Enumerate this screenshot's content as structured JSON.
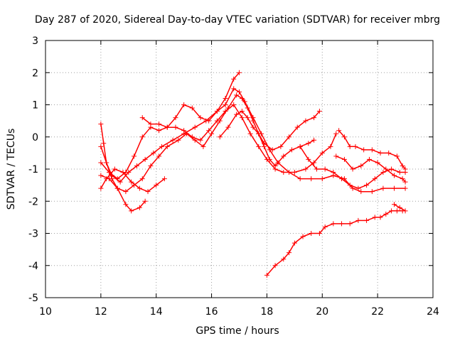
{
  "chart_data": {
    "type": "scatter",
    "title": "Day 287 of 2020, Sidereal Day-to-day VTEC variation (SDTVAR) for receiver mbrg",
    "xlabel": "GPS time / hours",
    "ylabel": "SDTVAR / TECUs",
    "xlim": [
      10,
      24
    ],
    "ylim": [
      -5,
      3
    ],
    "xticks": [
      "10",
      "12",
      "14",
      "16",
      "18",
      "20",
      "22",
      "24"
    ],
    "yticks": [
      "-5",
      "-4",
      "-3",
      "-2",
      "-1",
      "0",
      "1",
      "2",
      "3"
    ],
    "grid": true,
    "marker": "+",
    "color": "#ff0000",
    "series": [
      {
        "name": "track-1",
        "points": [
          [
            12.0,
            0.4
          ],
          [
            12.1,
            -0.2
          ],
          [
            12.2,
            -0.8
          ],
          [
            12.4,
            -1.3
          ],
          [
            12.6,
            -1.6
          ],
          [
            12.9,
            -1.7
          ],
          [
            13.2,
            -1.5
          ],
          [
            13.5,
            -1.3
          ],
          [
            13.8,
            -0.9
          ],
          [
            14.1,
            -0.6
          ],
          [
            14.4,
            -0.3
          ],
          [
            14.8,
            -0.1
          ],
          [
            15.1,
            0.1
          ],
          [
            15.4,
            -0.1
          ],
          [
            15.7,
            -0.3
          ],
          [
            16.0,
            0.1
          ],
          [
            16.3,
            0.5
          ],
          [
            16.6,
            0.9
          ],
          [
            16.9,
            1.3
          ],
          [
            17.1,
            1.2
          ],
          [
            17.3,
            0.9
          ],
          [
            17.5,
            0.5
          ],
          [
            17.7,
            0.1
          ],
          [
            17.9,
            -0.3
          ],
          [
            18.1,
            -0.7
          ],
          [
            18.3,
            -0.9
          ],
          [
            18.6,
            -0.6
          ],
          [
            18.9,
            -0.4
          ],
          [
            19.2,
            -0.3
          ],
          [
            19.5,
            -0.2
          ],
          [
            19.7,
            -0.1
          ]
        ]
      },
      {
        "name": "track-2",
        "points": [
          [
            12.0,
            -0.3
          ],
          [
            12.2,
            -0.8
          ],
          [
            12.4,
            -1.2
          ],
          [
            12.7,
            -1.4
          ],
          [
            13.0,
            -1.1
          ],
          [
            13.3,
            -0.9
          ],
          [
            13.6,
            -0.7
          ],
          [
            13.9,
            -0.5
          ],
          [
            14.2,
            -0.3
          ],
          [
            14.6,
            -0.1
          ],
          [
            15.0,
            0.1
          ],
          [
            15.4,
            0.3
          ],
          [
            15.8,
            0.5
          ],
          [
            16.2,
            0.8
          ],
          [
            16.5,
            1.0
          ],
          [
            16.8,
            1.5
          ],
          [
            17.0,
            1.4
          ],
          [
            17.2,
            1.1
          ],
          [
            17.5,
            0.6
          ],
          [
            17.8,
            0.1
          ],
          [
            18.1,
            -0.4
          ],
          [
            18.4,
            -0.8
          ],
          [
            18.8,
            -1.1
          ],
          [
            19.2,
            -1.3
          ],
          [
            19.6,
            -1.3
          ],
          [
            20.0,
            -1.3
          ],
          [
            20.4,
            -1.2
          ],
          [
            20.8,
            -1.3
          ],
          [
            21.1,
            -1.6
          ],
          [
            21.4,
            -1.7
          ],
          [
            21.8,
            -1.7
          ],
          [
            22.2,
            -1.6
          ],
          [
            22.6,
            -1.6
          ],
          [
            23.0,
            -1.6
          ]
        ]
      },
      {
        "name": "track-3",
        "points": [
          [
            12.0,
            -1.6
          ],
          [
            12.2,
            -1.3
          ],
          [
            12.5,
            -1.0
          ],
          [
            12.8,
            -1.1
          ],
          [
            13.1,
            -1.4
          ],
          [
            13.4,
            -1.6
          ],
          [
            13.7,
            -1.7
          ],
          [
            14.0,
            -1.5
          ],
          [
            14.3,
            -1.3
          ]
        ]
      },
      {
        "name": "track-4",
        "points": [
          [
            12.0,
            -1.2
          ],
          [
            12.3,
            -1.3
          ],
          [
            12.6,
            -1.6
          ],
          [
            12.9,
            -2.1
          ],
          [
            13.1,
            -2.3
          ],
          [
            13.4,
            -2.2
          ],
          [
            13.6,
            -2.0
          ]
        ]
      },
      {
        "name": "track-5",
        "points": [
          [
            13.5,
            0.6
          ],
          [
            13.8,
            0.4
          ],
          [
            14.1,
            0.4
          ],
          [
            14.4,
            0.3
          ],
          [
            14.7,
            0.3
          ],
          [
            15.0,
            0.2
          ],
          [
            15.3,
            0.0
          ],
          [
            15.6,
            -0.1
          ],
          [
            15.9,
            0.2
          ],
          [
            16.2,
            0.5
          ],
          [
            16.5,
            0.8
          ],
          [
            16.8,
            1.0
          ],
          [
            17.1,
            0.6
          ],
          [
            17.4,
            0.1
          ],
          [
            17.7,
            -0.3
          ],
          [
            18.0,
            -0.7
          ],
          [
            18.3,
            -1.0
          ],
          [
            18.6,
            -1.1
          ],
          [
            19.0,
            -1.1
          ],
          [
            19.4,
            -1.0
          ],
          [
            19.7,
            -0.8
          ],
          [
            20.0,
            -0.5
          ],
          [
            20.3,
            -0.3
          ],
          [
            20.5,
            0.1
          ]
        ]
      },
      {
        "name": "track-6",
        "points": [
          [
            12.0,
            -0.8
          ],
          [
            12.3,
            -1.1
          ],
          [
            12.6,
            -1.3
          ],
          [
            12.9,
            -1.1
          ],
          [
            13.2,
            -0.6
          ],
          [
            13.5,
            0.0
          ],
          [
            13.8,
            0.3
          ],
          [
            14.1,
            0.2
          ],
          [
            14.4,
            0.3
          ],
          [
            14.7,
            0.6
          ],
          [
            15.0,
            1.0
          ],
          [
            15.3,
            0.9
          ],
          [
            15.6,
            0.6
          ],
          [
            15.9,
            0.5
          ],
          [
            16.2,
            0.8
          ],
          [
            16.5,
            1.2
          ],
          [
            16.8,
            1.8
          ],
          [
            17.0,
            2.0
          ]
        ]
      },
      {
        "name": "track-7",
        "points": [
          [
            16.3,
            0.0
          ],
          [
            16.6,
            0.3
          ],
          [
            16.9,
            0.7
          ],
          [
            17.1,
            0.8
          ],
          [
            17.3,
            0.6
          ],
          [
            17.5,
            0.3
          ],
          [
            17.7,
            0.1
          ],
          [
            17.9,
            -0.2
          ],
          [
            18.2,
            -0.4
          ],
          [
            18.5,
            -0.3
          ],
          [
            18.8,
            0.0
          ],
          [
            19.1,
            0.3
          ],
          [
            19.4,
            0.5
          ],
          [
            19.7,
            0.6
          ],
          [
            19.9,
            0.8
          ]
        ]
      },
      {
        "name": "track-8",
        "points": [
          [
            18.0,
            -4.3
          ],
          [
            18.3,
            -4.0
          ],
          [
            18.6,
            -3.8
          ],
          [
            18.8,
            -3.6
          ],
          [
            19.0,
            -3.3
          ],
          [
            19.3,
            -3.1
          ],
          [
            19.6,
            -3.0
          ],
          [
            19.9,
            -3.0
          ],
          [
            20.1,
            -2.8
          ],
          [
            20.4,
            -2.7
          ],
          [
            20.7,
            -2.7
          ],
          [
            21.0,
            -2.7
          ],
          [
            21.3,
            -2.6
          ],
          [
            21.6,
            -2.6
          ],
          [
            21.9,
            -2.5
          ],
          [
            22.1,
            -2.5
          ],
          [
            22.3,
            -2.4
          ],
          [
            22.5,
            -2.3
          ],
          [
            22.7,
            -2.3
          ],
          [
            22.9,
            -2.3
          ]
        ]
      },
      {
        "name": "track-9",
        "points": [
          [
            20.6,
            0.2
          ],
          [
            20.8,
            0.0
          ],
          [
            21.0,
            -0.3
          ],
          [
            21.2,
            -0.3
          ],
          [
            21.5,
            -0.4
          ],
          [
            21.8,
            -0.4
          ],
          [
            22.1,
            -0.5
          ],
          [
            22.4,
            -0.5
          ],
          [
            22.7,
            -0.6
          ],
          [
            22.9,
            -0.9
          ],
          [
            23.0,
            -1.0
          ]
        ]
      },
      {
        "name": "track-10",
        "points": [
          [
            20.5,
            -0.6
          ],
          [
            20.8,
            -0.7
          ],
          [
            21.1,
            -1.0
          ],
          [
            21.4,
            -0.9
          ],
          [
            21.7,
            -0.7
          ],
          [
            22.0,
            -0.8
          ],
          [
            22.3,
            -1.0
          ],
          [
            22.6,
            -1.2
          ],
          [
            22.9,
            -1.3
          ],
          [
            23.0,
            -1.4
          ]
        ]
      },
      {
        "name": "track-11",
        "points": [
          [
            19.2,
            -0.3
          ],
          [
            19.5,
            -0.7
          ],
          [
            19.8,
            -1.0
          ],
          [
            20.1,
            -1.0
          ],
          [
            20.4,
            -1.1
          ],
          [
            20.7,
            -1.3
          ],
          [
            21.0,
            -1.5
          ],
          [
            21.3,
            -1.6
          ],
          [
            21.6,
            -1.5
          ],
          [
            21.9,
            -1.3
          ],
          [
            22.2,
            -1.1
          ],
          [
            22.5,
            -1.0
          ],
          [
            22.8,
            -1.1
          ],
          [
            23.0,
            -1.1
          ]
        ]
      },
      {
        "name": "track-12",
        "points": [
          [
            22.6,
            -2.1
          ],
          [
            22.8,
            -2.2
          ],
          [
            23.0,
            -2.3
          ]
        ]
      }
    ]
  }
}
